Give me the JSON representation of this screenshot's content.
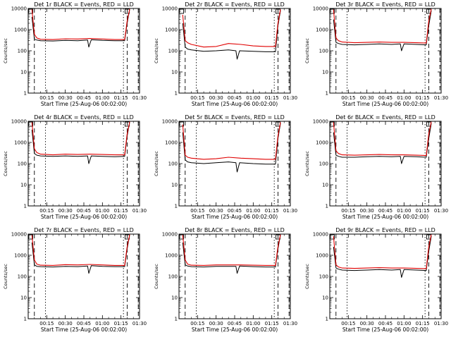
{
  "chart_data": [
    {
      "type": "line",
      "title": "Det 1r BLACK = Events, RED = LLD",
      "xlabel": "Start Time (25-Aug-06 00:02:00)",
      "ylabel": "Counts/sec",
      "y_scale": "log",
      "ylim": [
        1,
        10000
      ],
      "x_ticks": [
        "00:15",
        "00:30",
        "00:45",
        "01:00",
        "01:15",
        "01:30"
      ],
      "y_ticks": [
        "1",
        "10",
        "100",
        "1000",
        "10000"
      ],
      "colors": {
        "events": "#000000",
        "lld": "#e00000"
      },
      "series": [
        {
          "name": "Events",
          "color": "#000000",
          "x": [
            "00:03",
            "00:05",
            "00:07",
            "00:10",
            "00:20",
            "00:30",
            "00:40",
            "00:48",
            "00:49",
            "00:51",
            "00:60",
            "01:10",
            "01:18",
            "01:20",
            "01:22"
          ],
          "y": [
            4000,
            350,
            320,
            300,
            290,
            310,
            300,
            320,
            150,
            330,
            310,
            300,
            300,
            2000,
            9000
          ]
        },
        {
          "name": "LLD",
          "color": "#e00000",
          "x": [
            "00:03",
            "00:05",
            "00:07",
            "00:10",
            "00:20",
            "00:30",
            "00:40",
            "00:50",
            "00:60",
            "01:10",
            "01:18",
            "01:20",
            "01:22"
          ],
          "y": [
            9000,
            600,
            400,
            350,
            340,
            370,
            360,
            380,
            360,
            340,
            340,
            2500,
            9500
          ]
        }
      ]
    },
    {
      "type": "line",
      "title": "Det 2r BLACK = Events, RED = LLD",
      "xlabel": "Start Time (25-Aug-06 00:02:00)",
      "ylabel": "Counts/sec",
      "y_scale": "log",
      "ylim": [
        1,
        10000
      ],
      "x_ticks": [
        "00:15",
        "00:30",
        "00:45",
        "01:00",
        "01:15",
        "01:30"
      ],
      "y_ticks": [
        "1",
        "10",
        "100",
        "1000",
        "10000"
      ],
      "series": [
        {
          "name": "Events",
          "color": "#000000",
          "x": [
            "00:03",
            "00:05",
            "00:07",
            "00:10",
            "00:20",
            "00:30",
            "00:40",
            "00:46",
            "00:47",
            "00:49",
            "00:60",
            "01:10",
            "01:18",
            "01:20",
            "01:22"
          ],
          "y": [
            2000,
            150,
            120,
            110,
            95,
            100,
            110,
            100,
            40,
            100,
            95,
            90,
            90,
            1500,
            8000
          ]
        },
        {
          "name": "LLD",
          "color": "#e00000",
          "x": [
            "00:03",
            "00:05",
            "00:07",
            "00:10",
            "00:20",
            "00:30",
            "00:40",
            "00:50",
            "00:60",
            "01:10",
            "01:18",
            "01:20",
            "01:22"
          ],
          "y": [
            5000,
            300,
            240,
            200,
            150,
            160,
            220,
            200,
            170,
            160,
            160,
            2000,
            9000
          ]
        }
      ]
    },
    {
      "type": "line",
      "title": "Det 3r BLACK = Events, RED = LLD",
      "xlabel": "Start Time (25-Aug-06 00:02:00)",
      "ylabel": "Counts/sec",
      "y_scale": "log",
      "ylim": [
        1,
        10000
      ],
      "x_ticks": [
        "00:15",
        "00:30",
        "00:45",
        "01:00",
        "01:15",
        "01:30"
      ],
      "y_ticks": [
        "1",
        "10",
        "100",
        "1000",
        "10000"
      ],
      "series": [
        {
          "name": "Events",
          "color": "#000000",
          "x": [
            "00:03",
            "00:05",
            "00:07",
            "00:10",
            "00:20",
            "00:30",
            "00:40",
            "00:50",
            "00:57",
            "00:58",
            "01:00",
            "01:10",
            "01:18",
            "01:20",
            "01:22"
          ],
          "y": [
            3000,
            250,
            220,
            200,
            190,
            200,
            210,
            200,
            210,
            100,
            210,
            200,
            190,
            1500,
            8000
          ]
        },
        {
          "name": "LLD",
          "color": "#e00000",
          "x": [
            "00:03",
            "00:05",
            "00:07",
            "00:10",
            "00:20",
            "00:30",
            "00:40",
            "00:50",
            "00:60",
            "01:10",
            "01:18",
            "01:20",
            "01:22"
          ],
          "y": [
            9000,
            400,
            300,
            260,
            240,
            250,
            260,
            250,
            250,
            240,
            230,
            2500,
            9500
          ]
        }
      ]
    },
    {
      "type": "line",
      "title": "Det 4r BLACK = Events, RED = LLD",
      "xlabel": "Start Time (25-Aug-06 00:02:00)",
      "ylabel": "Counts/sec",
      "y_scale": "log",
      "ylim": [
        1,
        10000
      ],
      "x_ticks": [
        "00:15",
        "00:30",
        "00:45",
        "01:00",
        "01:15",
        "01:30"
      ],
      "y_ticks": [
        "1",
        "10",
        "100",
        "1000",
        "10000"
      ],
      "series": [
        {
          "name": "Events",
          "color": "#000000",
          "x": [
            "00:03",
            "00:05",
            "00:07",
            "00:10",
            "00:20",
            "00:30",
            "00:40",
            "00:48",
            "00:49",
            "00:51",
            "00:60",
            "01:10",
            "01:18",
            "01:20",
            "01:22"
          ],
          "y": [
            4000,
            300,
            250,
            230,
            220,
            230,
            220,
            230,
            100,
            230,
            220,
            210,
            220,
            2000,
            9000
          ]
        },
        {
          "name": "LLD",
          "color": "#e00000",
          "x": [
            "00:03",
            "00:05",
            "00:07",
            "00:10",
            "00:20",
            "00:30",
            "00:40",
            "00:50",
            "00:60",
            "01:10",
            "01:18",
            "01:20",
            "01:22"
          ],
          "y": [
            9000,
            500,
            330,
            280,
            260,
            280,
            270,
            280,
            270,
            260,
            260,
            2500,
            9500
          ]
        }
      ]
    },
    {
      "type": "line",
      "title": "Det 5r BLACK = Events, RED = LLD",
      "xlabel": "Start Time (25-Aug-06 00:02:00)",
      "ylabel": "Counts/sec",
      "y_scale": "log",
      "ylim": [
        1,
        10000
      ],
      "x_ticks": [
        "00:15",
        "00:30",
        "00:45",
        "01:00",
        "01:15",
        "01:30"
      ],
      "y_ticks": [
        "1",
        "10",
        "100",
        "1000",
        "10000"
      ],
      "series": [
        {
          "name": "Events",
          "color": "#000000",
          "x": [
            "00:03",
            "00:05",
            "00:07",
            "00:10",
            "00:20",
            "00:30",
            "00:40",
            "00:46",
            "00:47",
            "00:49",
            "00:60",
            "01:10",
            "01:18",
            "01:20",
            "01:22"
          ],
          "y": [
            3000,
            150,
            120,
            110,
            100,
            110,
            120,
            110,
            40,
            110,
            100,
            95,
            95,
            1500,
            8000
          ]
        },
        {
          "name": "LLD",
          "color": "#e00000",
          "x": [
            "00:03",
            "00:05",
            "00:07",
            "00:10",
            "00:20",
            "00:30",
            "00:40",
            "00:50",
            "00:60",
            "01:10",
            "01:18",
            "01:20",
            "01:22"
          ],
          "y": [
            7000,
            250,
            200,
            180,
            160,
            170,
            200,
            180,
            170,
            160,
            160,
            2000,
            9000
          ]
        }
      ]
    },
    {
      "type": "line",
      "title": "Det 6r BLACK = Events, RED = LLD",
      "xlabel": "Start Time (25-Aug-06 00:02:00)",
      "ylabel": "Counts/sec",
      "y_scale": "log",
      "ylim": [
        1,
        10000
      ],
      "x_ticks": [
        "00:15",
        "00:30",
        "00:45",
        "01:00",
        "01:15",
        "01:30"
      ],
      "y_ticks": [
        "1",
        "10",
        "100",
        "1000",
        "10000"
      ],
      "series": [
        {
          "name": "Events",
          "color": "#000000",
          "x": [
            "00:03",
            "00:05",
            "00:07",
            "00:10",
            "00:20",
            "00:30",
            "00:40",
            "00:50",
            "00:57",
            "00:58",
            "01:00",
            "01:10",
            "01:18",
            "01:20",
            "01:22"
          ],
          "y": [
            3000,
            250,
            220,
            200,
            200,
            210,
            220,
            210,
            220,
            100,
            220,
            210,
            200,
            1500,
            8000
          ]
        },
        {
          "name": "LLD",
          "color": "#e00000",
          "x": [
            "00:03",
            "00:05",
            "00:07",
            "00:10",
            "00:20",
            "00:30",
            "00:40",
            "00:50",
            "00:60",
            "01:10",
            "01:18",
            "01:20",
            "01:22"
          ],
          "y": [
            9000,
            400,
            300,
            260,
            250,
            260,
            270,
            260,
            260,
            250,
            240,
            2500,
            9500
          ]
        }
      ]
    },
    {
      "type": "line",
      "title": "Det 7r BLACK = Events, RED = LLD",
      "xlabel": "Start Time (25-Aug-06 00:02:00)",
      "ylabel": "Counts/sec",
      "y_scale": "log",
      "ylim": [
        1,
        10000
      ],
      "x_ticks": [
        "00:15",
        "00:30",
        "00:45",
        "01:00",
        "01:15",
        "01:30"
      ],
      "y_ticks": [
        "1",
        "10",
        "100",
        "1000",
        "10000"
      ],
      "series": [
        {
          "name": "Events",
          "color": "#000000",
          "x": [
            "00:03",
            "00:05",
            "00:07",
            "00:10",
            "00:20",
            "00:30",
            "00:40",
            "00:48",
            "00:49",
            "00:51",
            "00:60",
            "01:10",
            "01:18",
            "01:20",
            "01:22"
          ],
          "y": [
            4000,
            350,
            300,
            290,
            280,
            300,
            290,
            310,
            140,
            320,
            300,
            290,
            290,
            2000,
            9000
          ]
        },
        {
          "name": "LLD",
          "color": "#e00000",
          "x": [
            "00:03",
            "00:05",
            "00:07",
            "00:10",
            "00:20",
            "00:30",
            "00:40",
            "00:50",
            "00:60",
            "01:10",
            "01:18",
            "01:20",
            "01:22"
          ],
          "y": [
            9000,
            600,
            380,
            340,
            330,
            360,
            350,
            370,
            350,
            330,
            330,
            2500,
            9500
          ]
        }
      ]
    },
    {
      "type": "line",
      "title": "Det 8r BLACK = Events, RED = LLD",
      "xlabel": "Start Time (25-Aug-06 00:02:00)",
      "ylabel": "Counts/sec",
      "y_scale": "log",
      "ylim": [
        1,
        10000
      ],
      "x_ticks": [
        "00:15",
        "00:30",
        "00:45",
        "01:00",
        "01:15",
        "01:30"
      ],
      "y_ticks": [
        "1",
        "10",
        "100",
        "1000",
        "10000"
      ],
      "series": [
        {
          "name": "Events",
          "color": "#000000",
          "x": [
            "00:03",
            "00:05",
            "00:07",
            "00:10",
            "00:20",
            "00:30",
            "00:40",
            "00:46",
            "00:47",
            "00:49",
            "00:60",
            "01:10",
            "01:18",
            "01:20",
            "01:22"
          ],
          "y": [
            4000,
            350,
            310,
            290,
            280,
            300,
            300,
            300,
            140,
            310,
            290,
            280,
            280,
            2000,
            9000
          ]
        },
        {
          "name": "LLD",
          "color": "#e00000",
          "x": [
            "00:03",
            "00:05",
            "00:07",
            "00:10",
            "00:20",
            "00:30",
            "00:40",
            "00:50",
            "00:60",
            "01:10",
            "01:18",
            "01:20",
            "01:22"
          ],
          "y": [
            9000,
            600,
            380,
            340,
            330,
            350,
            350,
            350,
            340,
            330,
            330,
            2500,
            9500
          ]
        }
      ]
    },
    {
      "type": "line",
      "title": "Det 9r BLACK = Events, RED = LLD",
      "xlabel": "Start Time (25-Aug-06 00:02:00)",
      "ylabel": "Counts/sec",
      "y_scale": "log",
      "ylim": [
        1,
        10000
      ],
      "x_ticks": [
        "00:15",
        "00:30",
        "00:45",
        "01:00",
        "01:15",
        "01:30"
      ],
      "y_ticks": [
        "1",
        "10",
        "100",
        "1000",
        "10000"
      ],
      "series": [
        {
          "name": "Events",
          "color": "#000000",
          "x": [
            "00:03",
            "00:05",
            "00:07",
            "00:10",
            "00:20",
            "00:30",
            "00:40",
            "00:50",
            "00:57",
            "00:58",
            "01:00",
            "01:10",
            "01:18",
            "01:20",
            "01:22"
          ],
          "y": [
            2500,
            250,
            220,
            200,
            190,
            200,
            210,
            200,
            210,
            90,
            210,
            200,
            190,
            1500,
            8000
          ]
        },
        {
          "name": "LLD",
          "color": "#e00000",
          "x": [
            "00:03",
            "00:05",
            "00:07",
            "00:10",
            "00:20",
            "00:30",
            "00:40",
            "00:50",
            "00:60",
            "01:10",
            "01:18",
            "01:20",
            "01:22"
          ],
          "y": [
            8000,
            350,
            280,
            250,
            240,
            250,
            260,
            250,
            250,
            240,
            230,
            2500,
            9500
          ]
        }
      ]
    }
  ]
}
